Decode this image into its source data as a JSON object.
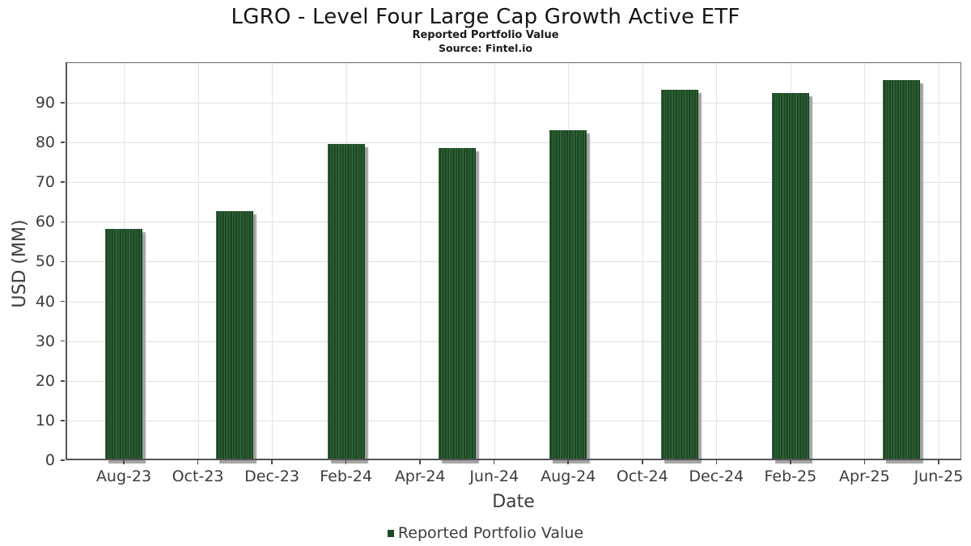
{
  "header": {
    "title": "LGRO - Level Four Large Cap Growth Active ETF",
    "subtitle": "Reported Portfolio Value",
    "source": "Source: Fintel.io"
  },
  "chart_data": {
    "type": "bar",
    "title": "LGRO - Level Four Large Cap Growth Active ETF",
    "subtitle": "Reported Portfolio Value",
    "source": "Source: Fintel.io",
    "xlabel": "Date",
    "ylabel": "USD (MM)",
    "legend": {
      "position": "bottom",
      "entries": [
        "Reported Portfolio Value"
      ]
    },
    "grid": true,
    "colors": {
      "bar_fill": "#1c4723",
      "bar_stripe": "#376b3e",
      "bar_shadow": "#a2a2a2",
      "gridline": "#e0e0e0",
      "axis": "#555555",
      "text": "#3c3c3c"
    },
    "categories": [
      "Aug-23",
      "Nov-23",
      "Feb-24",
      "May-24",
      "Aug-24",
      "Nov-24",
      "Feb-25",
      "May-25"
    ],
    "values": [
      58.2,
      62.7,
      79.6,
      78.6,
      83.0,
      93.2,
      92.4,
      95.7
    ],
    "series": [
      {
        "name": "Reported Portfolio Value",
        "values": [
          58.2,
          62.7,
          79.6,
          78.6,
          83.0,
          93.2,
          92.4,
          95.7
        ]
      }
    ],
    "axes": {
      "x_tick_labels": [
        "Aug-23",
        "Oct-23",
        "Dec-23",
        "Feb-24",
        "Apr-24",
        "Jun-24",
        "Aug-24",
        "Oct-24",
        "Dec-24",
        "Feb-25",
        "Apr-25",
        "Jun-25"
      ],
      "x_tick_months": [
        0,
        2,
        4,
        6,
        8,
        10,
        12,
        14,
        16,
        18,
        20,
        22
      ],
      "bar_months": [
        0,
        3,
        6,
        9,
        12,
        15,
        18,
        21
      ],
      "xlim_months": [
        -1.573,
        22.613
      ],
      "y_ticks": [
        0,
        10,
        20,
        30,
        40,
        50,
        60,
        70,
        80,
        90
      ],
      "ylim": [
        0,
        100.17
      ]
    }
  }
}
